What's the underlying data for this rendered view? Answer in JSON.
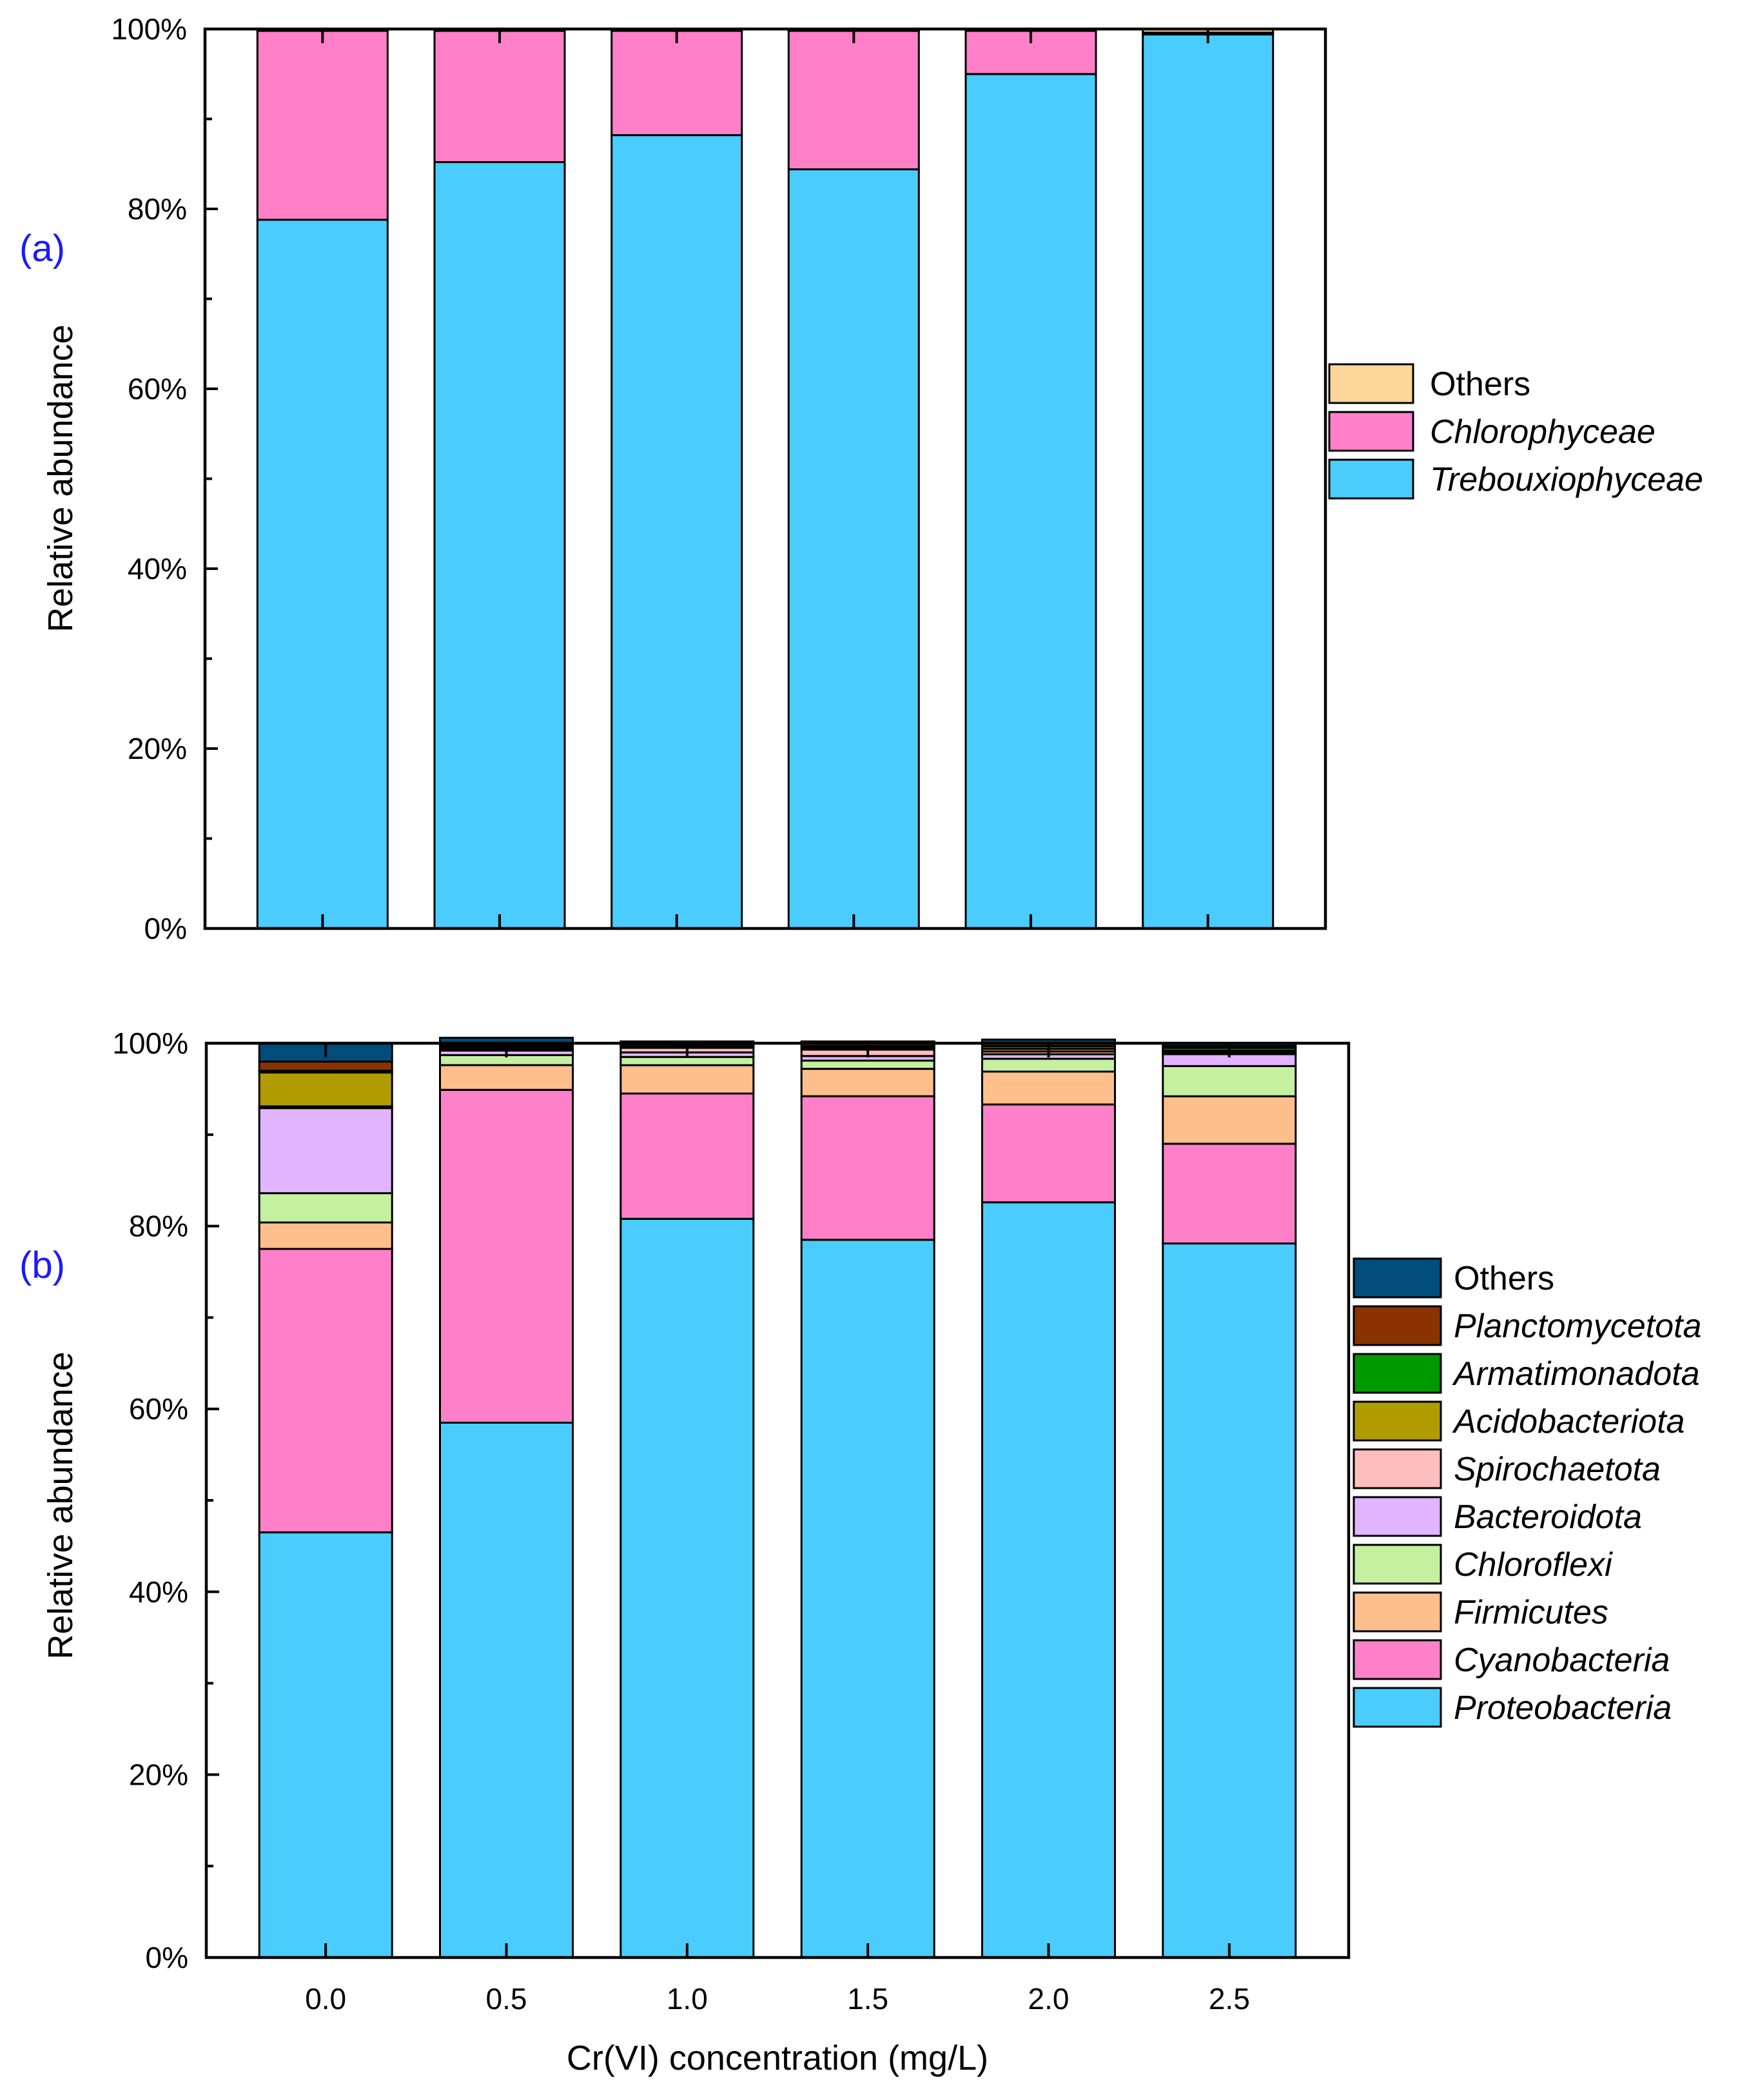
{
  "colors": {
    "panel_label": "#1a1aff",
    "Others_a": "#fdd699",
    "Chlorophyceae": "#ff80c8",
    "Trebouxiophyceae": "#4acdfd",
    "Others_b": "#004c7b",
    "Planctomycetota": "#8b3300",
    "Armatimonadota": "#009900",
    "Acidobacteriota": "#b09c00",
    "Spirochaetota": "#ffbebe",
    "Bacteroidota": "#e1b4ff",
    "Chloroflexi": "#c5f0a0",
    "Firmicutes": "#ffbf8c",
    "Cyanobacteria": "#ff80c8",
    "Proteobacteria": "#4acdfd"
  },
  "chart_data": [
    {
      "type": "bar",
      "stacked": true,
      "panel_label": "(a)",
      "title": "",
      "xlabel": "",
      "ylabel": "Relative abundance",
      "ylim": [
        0,
        100
      ],
      "yticks": [
        "0%",
        "20%",
        "40%",
        "60%",
        "80%",
        "100%"
      ],
      "categories": [
        "0.0",
        "0.5",
        "1.0",
        "1.5",
        "2.0",
        "2.5"
      ],
      "show_x_tick_labels": false,
      "legend_position": "right",
      "series": [
        {
          "name": "Trebouxiophyceae",
          "italic": true,
          "color_key": "Trebouxiophyceae",
          "values": [
            78.8,
            85.2,
            88.2,
            84.4,
            95.0,
            99.4
          ]
        },
        {
          "name": "Chlorophyceae",
          "italic": true,
          "color_key": "Chlorophyceae",
          "values": [
            21.0,
            14.6,
            11.6,
            15.4,
            4.8,
            0.2
          ]
        },
        {
          "name": "Others",
          "italic": false,
          "color_key": "Others_a",
          "values": [
            0.2,
            0.2,
            0.2,
            0.2,
            0.2,
            0.4
          ]
        }
      ]
    },
    {
      "type": "bar",
      "stacked": true,
      "panel_label": "(b)",
      "title": "",
      "xlabel": "Cr(VI) concentration (mg/L)",
      "ylabel": "Relative abundance",
      "ylim": [
        0,
        100
      ],
      "yticks": [
        "0%",
        "20%",
        "40%",
        "60%",
        "80%",
        "100%"
      ],
      "categories": [
        "0.0",
        "0.5",
        "1.0",
        "1.5",
        "2.0",
        "2.5"
      ],
      "show_x_tick_labels": true,
      "legend_position": "right",
      "series": [
        {
          "name": "Proteobacteria",
          "italic": true,
          "color_key": "Proteobacteria",
          "values": [
            46.5,
            58.5,
            80.8,
            78.5,
            82.6,
            78.1
          ]
        },
        {
          "name": "Cyanobacteria",
          "italic": true,
          "color_key": "Cyanobacteria",
          "values": [
            31.0,
            36.4,
            13.7,
            15.7,
            10.7,
            10.9
          ]
        },
        {
          "name": "Firmicutes",
          "italic": true,
          "color_key": "Firmicutes",
          "values": [
            2.9,
            2.7,
            3.1,
            3.0,
            3.6,
            5.2
          ]
        },
        {
          "name": "Chloroflexi",
          "italic": true,
          "color_key": "Chloroflexi",
          "values": [
            3.2,
            1.1,
            0.9,
            0.9,
            1.4,
            3.3
          ]
        },
        {
          "name": "Bacteroidota",
          "italic": true,
          "color_key": "Bacteroidota",
          "values": [
            9.3,
            0.5,
            0.5,
            0.5,
            0.5,
            1.3
          ]
        },
        {
          "name": "Spirochaetota",
          "italic": true,
          "color_key": "Spirochaetota",
          "values": [
            0.2,
            0.2,
            0.5,
            0.7,
            0.3,
            0.2
          ]
        },
        {
          "name": "Acidobacteriota",
          "italic": true,
          "color_key": "Acidobacteriota",
          "values": [
            3.7,
            0.2,
            0.2,
            0.2,
            0.3,
            0.2
          ]
        },
        {
          "name": "Armatimonadota",
          "italic": true,
          "color_key": "Armatimonadota",
          "values": [
            0.2,
            0.2,
            0.1,
            0.2,
            0.3,
            0.3
          ]
        },
        {
          "name": "Planctomycetota",
          "italic": true,
          "color_key": "Planctomycetota",
          "values": [
            1.0,
            0.2,
            0.2,
            0.3,
            0.3,
            0.2
          ]
        },
        {
          "name": "Others",
          "italic": false,
          "color_key": "Others_b",
          "values": [
            2.0,
            0.6,
            0.2,
            0.2,
            0.4,
            0.3
          ]
        }
      ]
    }
  ]
}
